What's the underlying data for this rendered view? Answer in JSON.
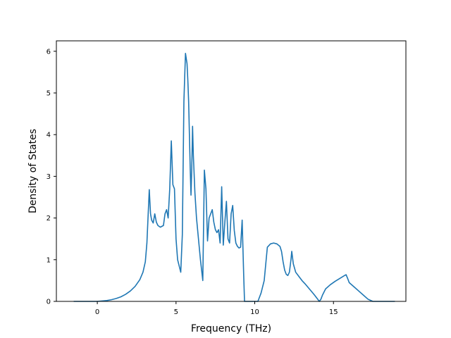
{
  "chart_data": {
    "type": "line",
    "title": "",
    "xlabel": "Frequency (THz)",
    "ylabel": "Density of States",
    "xlim": [
      -2.6,
      19.6
    ],
    "ylim": [
      0,
      6.25
    ],
    "x_ticks": [
      0,
      5,
      10,
      15
    ],
    "y_ticks": [
      0,
      1,
      2,
      3,
      4,
      5,
      6
    ],
    "x_tick_labels": [
      "0",
      "5",
      "10",
      "15"
    ],
    "y_tick_labels": [
      "0",
      "1",
      "2",
      "3",
      "4",
      "5",
      "6"
    ],
    "grid": false,
    "legend": false,
    "series": [
      {
        "color": "#1f77b4",
        "x": [
          -1.5,
          -1.0,
          -0.5,
          0.0,
          0.3,
          0.6,
          0.9,
          1.2,
          1.5,
          1.8,
          2.1,
          2.4,
          2.7,
          2.9,
          3.05,
          3.15,
          3.22,
          3.3,
          3.38,
          3.45,
          3.55,
          3.65,
          3.75,
          3.85,
          4.0,
          4.2,
          4.3,
          4.4,
          4.5,
          4.6,
          4.7,
          4.8,
          4.9,
          5.0,
          5.1,
          5.2,
          5.3,
          5.4,
          5.5,
          5.6,
          5.7,
          5.75,
          5.8,
          5.9,
          5.95,
          6.0,
          6.05,
          6.1,
          6.2,
          6.3,
          6.4,
          6.55,
          6.7,
          6.8,
          6.9,
          7.0,
          7.1,
          7.2,
          7.3,
          7.4,
          7.5,
          7.6,
          7.7,
          7.8,
          7.9,
          8.0,
          8.1,
          8.2,
          8.3,
          8.4,
          8.5,
          8.6,
          8.7,
          8.8,
          8.9,
          9.0,
          9.1,
          9.2,
          9.3,
          9.35,
          9.45,
          9.55,
          10.2,
          10.4,
          10.6,
          10.8,
          11.0,
          11.2,
          11.4,
          11.6,
          11.7,
          11.8,
          11.9,
          12.0,
          12.1,
          12.2,
          12.3,
          12.35,
          12.45,
          12.6,
          12.8,
          13.0,
          13.2,
          13.4,
          13.6,
          13.8,
          14.0,
          14.1,
          14.2,
          14.3,
          14.5,
          14.8,
          15.1,
          15.4,
          15.7,
          15.8,
          15.9,
          16.0,
          16.3,
          16.6,
          16.9,
          17.2,
          17.5,
          18.0,
          18.5,
          18.9
        ],
        "y": [
          0,
          0,
          0,
          0,
          0.01,
          0.02,
          0.04,
          0.07,
          0.11,
          0.17,
          0.25,
          0.36,
          0.52,
          0.7,
          0.95,
          1.4,
          2.0,
          2.68,
          2.1,
          1.95,
          1.88,
          2.1,
          1.9,
          1.82,
          1.78,
          1.82,
          2.1,
          2.2,
          2.0,
          2.7,
          3.85,
          2.8,
          2.7,
          1.5,
          1.0,
          0.85,
          0.7,
          1.6,
          4.8,
          5.95,
          5.7,
          5.3,
          4.8,
          3.2,
          2.55,
          3.2,
          4.2,
          3.5,
          2.6,
          2.0,
          1.6,
          1.0,
          0.5,
          3.15,
          2.7,
          1.45,
          2.0,
          2.1,
          2.2,
          1.9,
          1.72,
          1.65,
          1.72,
          1.4,
          2.75,
          1.35,
          1.9,
          2.4,
          1.5,
          1.4,
          2.1,
          2.3,
          1.7,
          1.4,
          1.32,
          1.28,
          1.3,
          1.95,
          0.6,
          0,
          0,
          0,
          0,
          0.2,
          0.5,
          1.3,
          1.38,
          1.4,
          1.38,
          1.32,
          1.2,
          0.95,
          0.75,
          0.65,
          0.62,
          0.7,
          1.0,
          1.2,
          0.9,
          0.7,
          0.6,
          0.5,
          0.42,
          0.33,
          0.24,
          0.15,
          0.05,
          0.0,
          0.05,
          0.15,
          0.3,
          0.4,
          0.48,
          0.55,
          0.62,
          0.64,
          0.55,
          0.45,
          0.35,
          0.25,
          0.15,
          0.05,
          0,
          0,
          0,
          0
        ]
      }
    ]
  }
}
